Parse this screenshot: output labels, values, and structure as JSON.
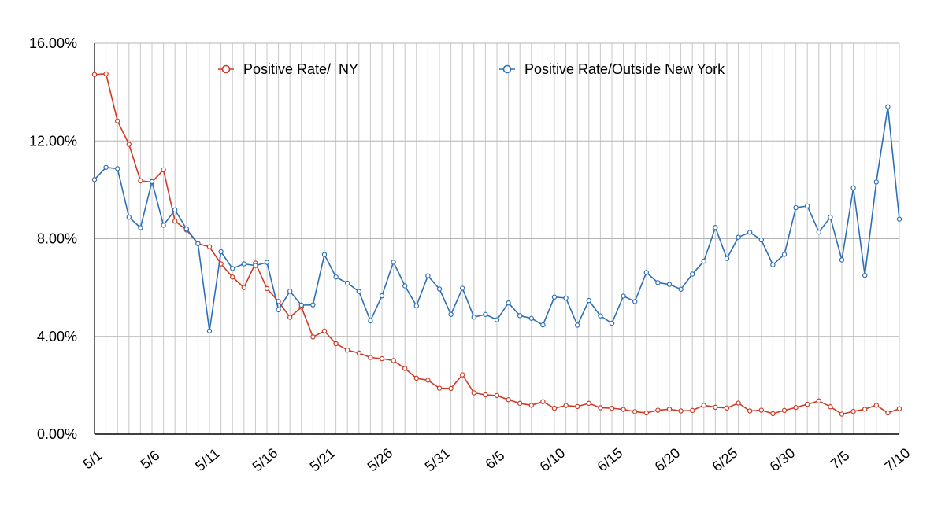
{
  "chart_data": {
    "type": "line",
    "title": "",
    "xlabel": "",
    "ylabel": "",
    "ylim": [
      0,
      16
    ],
    "y_ticks": [
      "0.00%",
      "4.00%",
      "8.00%",
      "12.00%",
      "16.00%"
    ],
    "y_tick_values": [
      0,
      4,
      8,
      12,
      16
    ],
    "x_tick_labels": [
      "5/1",
      "5/6",
      "5/11",
      "5/16",
      "5/21",
      "5/26",
      "5/31",
      "6/5",
      "6/10",
      "6/15",
      "6/20",
      "6/25",
      "6/30",
      "7/5",
      "7/10"
    ],
    "x_tick_indices": [
      0,
      5,
      10,
      15,
      20,
      25,
      30,
      35,
      40,
      45,
      50,
      55,
      60,
      65,
      70
    ],
    "grid": true,
    "legend_position": "top",
    "categories": [
      "5/1",
      "5/2",
      "5/3",
      "5/4",
      "5/5",
      "5/6",
      "5/7",
      "5/8",
      "5/9",
      "5/10",
      "5/11",
      "5/12",
      "5/13",
      "5/14",
      "5/15",
      "5/16",
      "5/17",
      "5/18",
      "5/19",
      "5/20",
      "5/21",
      "5/22",
      "5/23",
      "5/24",
      "5/25",
      "5/26",
      "5/27",
      "5/28",
      "5/29",
      "5/30",
      "5/31",
      "6/1",
      "6/2",
      "6/3",
      "6/4",
      "6/5",
      "6/6",
      "6/7",
      "6/8",
      "6/9",
      "6/10",
      "6/11",
      "6/12",
      "6/13",
      "6/14",
      "6/15",
      "6/16",
      "6/17",
      "6/18",
      "6/19",
      "6/20",
      "6/21",
      "6/22",
      "6/23",
      "6/24",
      "6/25",
      "6/26",
      "6/27",
      "6/28",
      "6/29",
      "6/30",
      "7/1",
      "7/2",
      "7/3",
      "7/4",
      "7/5",
      "7/6",
      "7/7",
      "7/8",
      "7/9",
      "7/10"
    ],
    "series": [
      {
        "name": "Positive Rate/  NY",
        "color": "#d03a25",
        "values": [
          14.72,
          14.75,
          12.82,
          11.86,
          10.37,
          10.32,
          10.82,
          8.72,
          8.36,
          7.8,
          7.67,
          6.97,
          6.43,
          6.0,
          7.0,
          5.96,
          5.43,
          4.78,
          5.2,
          3.98,
          4.22,
          3.7,
          3.44,
          3.32,
          3.14,
          3.09,
          3.01,
          2.69,
          2.29,
          2.21,
          1.88,
          1.87,
          2.43,
          1.69,
          1.61,
          1.58,
          1.41,
          1.26,
          1.18,
          1.33,
          1.06,
          1.17,
          1.13,
          1.26,
          1.08,
          1.06,
          1.01,
          0.92,
          0.87,
          0.98,
          1.02,
          0.95,
          0.97,
          1.18,
          1.1,
          1.07,
          1.27,
          0.95,
          0.98,
          0.84,
          0.97,
          1.09,
          1.22,
          1.36,
          1.12,
          0.82,
          0.93,
          1.02,
          1.18,
          0.87,
          1.04
        ]
      },
      {
        "name": "Positive Rate/Outside New York",
        "color": "#2f6fb5",
        "values": [
          10.42,
          10.92,
          10.87,
          8.88,
          8.45,
          10.34,
          8.55,
          9.18,
          8.4,
          7.8,
          4.22,
          7.47,
          6.78,
          6.97,
          6.9,
          7.03,
          5.09,
          5.85,
          5.28,
          5.29,
          7.35,
          6.43,
          6.18,
          5.84,
          4.64,
          5.66,
          7.04,
          6.07,
          5.25,
          6.48,
          5.94,
          4.9,
          5.97,
          4.79,
          4.9,
          4.68,
          5.37,
          4.85,
          4.74,
          4.47,
          5.61,
          5.57,
          4.46,
          5.47,
          4.84,
          4.54,
          5.65,
          5.43,
          6.62,
          6.2,
          6.13,
          5.93,
          6.55,
          7.08,
          8.46,
          7.19,
          8.06,
          8.26,
          7.95,
          6.93,
          7.36,
          9.27,
          9.34,
          8.27,
          8.88,
          7.13,
          10.08,
          6.5,
          10.32,
          13.4,
          8.8
        ]
      }
    ]
  }
}
